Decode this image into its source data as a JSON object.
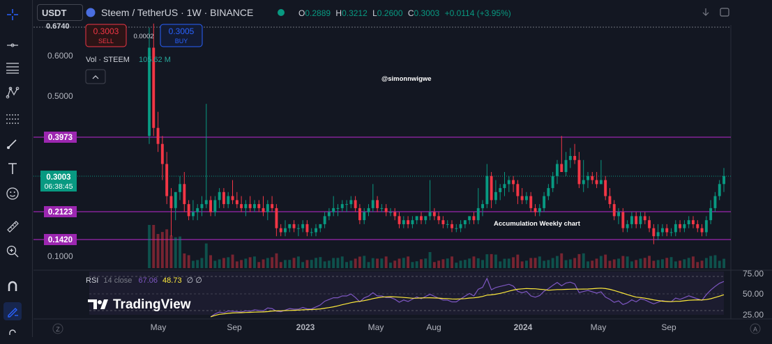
{
  "header": {
    "symbol": "USDT",
    "title": "Steem / TetherUS · 1W · BINANCE",
    "ohlc": {
      "open_label": "O",
      "open": "0.2889",
      "high_label": "H",
      "high": "0.3212",
      "low_label": "L",
      "low": "0.2600",
      "close_label": "C",
      "close": "0.3003",
      "change": "+0.0114 (+3.95%)"
    }
  },
  "trade": {
    "sell_price": "0.3003",
    "sell_label": "SELL",
    "spread": "0.0002",
    "buy_price": "0.3005",
    "buy_label": "BUY"
  },
  "volume_legend": {
    "label": "Vol · STEEM",
    "value": "105.62 M"
  },
  "rsi_legend": {
    "label": "RSI",
    "params": "14 close",
    "value1": "67.06",
    "value2": "48.73",
    "extra": "∅ ∅"
  },
  "annotations": {
    "author": "@simonnwigwe",
    "note": "Accumulation Weekly chart"
  },
  "price_axis": {
    "top_partial": "0.6740",
    "ticks": [
      "0.6000",
      "0.5000",
      "0.1000"
    ],
    "tags": [
      {
        "value": "0.3973",
        "color": "#9c27b0"
      },
      {
        "value": "0.2123",
        "color": "#9c27b0"
      },
      {
        "value": "0.1420",
        "color": "#9c27b0"
      }
    ],
    "current": {
      "value": "0.3003",
      "countdown": "06:38:45",
      "color": "#089981"
    },
    "rsi_ticks": [
      "75.00",
      "50.00",
      "25.00"
    ]
  },
  "time_axis": [
    "May",
    "Sep",
    "2023",
    "May",
    "Aug",
    "2024",
    "May",
    "Sep"
  ],
  "watermark": "TradingView",
  "colors": {
    "up": "#089981",
    "down": "#f23645",
    "level": "#9c27b0",
    "rsi": "#7e57c2",
    "rsi_ma": "#ffeb3b"
  },
  "chart_data": {
    "type": "candlestick",
    "interval": "1W",
    "x_range": [
      "2022-03",
      "2024-11"
    ],
    "y_range": [
      0.075,
      0.674
    ],
    "horizontal_levels": [
      0.3973,
      0.2123,
      0.142
    ],
    "current_price": 0.3003,
    "ohlc_weekly": [
      [
        0.4,
        0.67,
        0.38,
        0.62
      ],
      [
        0.62,
        0.68,
        0.4,
        0.42
      ],
      [
        0.42,
        0.46,
        0.36,
        0.38
      ],
      [
        0.38,
        0.4,
        0.29,
        0.33
      ],
      [
        0.33,
        0.36,
        0.23,
        0.25
      ],
      [
        0.25,
        0.27,
        0.15,
        0.22
      ],
      [
        0.22,
        0.26,
        0.19,
        0.26
      ],
      [
        0.26,
        0.3,
        0.24,
        0.28
      ],
      [
        0.28,
        0.31,
        0.21,
        0.23
      ],
      [
        0.23,
        0.24,
        0.19,
        0.2
      ],
      [
        0.2,
        0.24,
        0.19,
        0.21
      ],
      [
        0.21,
        0.23,
        0.19,
        0.22
      ],
      [
        0.22,
        0.25,
        0.2,
        0.23
      ],
      [
        0.23,
        0.48,
        0.22,
        0.24
      ],
      [
        0.24,
        0.25,
        0.2,
        0.21
      ],
      [
        0.21,
        0.25,
        0.2,
        0.24
      ],
      [
        0.24,
        0.27,
        0.22,
        0.26
      ],
      [
        0.26,
        0.27,
        0.22,
        0.23
      ],
      [
        0.23,
        0.26,
        0.22,
        0.25
      ],
      [
        0.25,
        0.29,
        0.23,
        0.24
      ],
      [
        0.24,
        0.26,
        0.22,
        0.23
      ],
      [
        0.23,
        0.25,
        0.21,
        0.22
      ],
      [
        0.22,
        0.24,
        0.2,
        0.23
      ],
      [
        0.23,
        0.25,
        0.21,
        0.22
      ],
      [
        0.22,
        0.24,
        0.21,
        0.23
      ],
      [
        0.23,
        0.24,
        0.21,
        0.22
      ],
      [
        0.22,
        0.25,
        0.2,
        0.21
      ],
      [
        0.21,
        0.24,
        0.19,
        0.23
      ],
      [
        0.23,
        0.25,
        0.21,
        0.22
      ],
      [
        0.22,
        0.23,
        0.15,
        0.17
      ],
      [
        0.17,
        0.18,
        0.15,
        0.16
      ],
      [
        0.16,
        0.19,
        0.15,
        0.17
      ],
      [
        0.17,
        0.18,
        0.16,
        0.18
      ],
      [
        0.18,
        0.19,
        0.16,
        0.17
      ],
      [
        0.17,
        0.18,
        0.15,
        0.17
      ],
      [
        0.17,
        0.19,
        0.16,
        0.18
      ],
      [
        0.18,
        0.19,
        0.15,
        0.16
      ],
      [
        0.16,
        0.17,
        0.15,
        0.16
      ],
      [
        0.16,
        0.18,
        0.15,
        0.17
      ],
      [
        0.17,
        0.18,
        0.16,
        0.18
      ],
      [
        0.18,
        0.21,
        0.17,
        0.2
      ],
      [
        0.2,
        0.22,
        0.19,
        0.21
      ],
      [
        0.21,
        0.25,
        0.2,
        0.22
      ],
      [
        0.22,
        0.23,
        0.2,
        0.22
      ],
      [
        0.22,
        0.24,
        0.21,
        0.23
      ],
      [
        0.23,
        0.24,
        0.21,
        0.23
      ],
      [
        0.23,
        0.25,
        0.22,
        0.24
      ],
      [
        0.24,
        0.25,
        0.21,
        0.22
      ],
      [
        0.22,
        0.23,
        0.18,
        0.19
      ],
      [
        0.19,
        0.22,
        0.18,
        0.21
      ],
      [
        0.21,
        0.23,
        0.2,
        0.22
      ],
      [
        0.22,
        0.28,
        0.21,
        0.24
      ],
      [
        0.24,
        0.25,
        0.21,
        0.22
      ],
      [
        0.22,
        0.23,
        0.21,
        0.22
      ],
      [
        0.22,
        0.23,
        0.2,
        0.21
      ],
      [
        0.21,
        0.22,
        0.2,
        0.21
      ],
      [
        0.21,
        0.22,
        0.19,
        0.2
      ],
      [
        0.2,
        0.21,
        0.17,
        0.18
      ],
      [
        0.18,
        0.2,
        0.17,
        0.19
      ],
      [
        0.19,
        0.2,
        0.17,
        0.18
      ],
      [
        0.18,
        0.2,
        0.17,
        0.19
      ],
      [
        0.19,
        0.2,
        0.18,
        0.2
      ],
      [
        0.2,
        0.21,
        0.18,
        0.19
      ],
      [
        0.19,
        0.2,
        0.18,
        0.2
      ],
      [
        0.2,
        0.29,
        0.19,
        0.21
      ],
      [
        0.21,
        0.22,
        0.19,
        0.2
      ],
      [
        0.2,
        0.21,
        0.18,
        0.19
      ],
      [
        0.19,
        0.2,
        0.17,
        0.18
      ],
      [
        0.18,
        0.19,
        0.17,
        0.18
      ],
      [
        0.18,
        0.19,
        0.16,
        0.17
      ],
      [
        0.17,
        0.18,
        0.16,
        0.17
      ],
      [
        0.17,
        0.19,
        0.16,
        0.18
      ],
      [
        0.18,
        0.19,
        0.17,
        0.19
      ],
      [
        0.19,
        0.2,
        0.18,
        0.2
      ],
      [
        0.2,
        0.21,
        0.18,
        0.19
      ],
      [
        0.19,
        0.27,
        0.18,
        0.22
      ],
      [
        0.22,
        0.24,
        0.2,
        0.23
      ],
      [
        0.23,
        0.33,
        0.22,
        0.3
      ],
      [
        0.3,
        0.31,
        0.22,
        0.24
      ],
      [
        0.24,
        0.29,
        0.23,
        0.26
      ],
      [
        0.26,
        0.28,
        0.24,
        0.27
      ],
      [
        0.27,
        0.31,
        0.25,
        0.28
      ],
      [
        0.28,
        0.3,
        0.26,
        0.29
      ],
      [
        0.29,
        0.3,
        0.26,
        0.28
      ],
      [
        0.28,
        0.29,
        0.23,
        0.25
      ],
      [
        0.25,
        0.27,
        0.23,
        0.24
      ],
      [
        0.24,
        0.26,
        0.23,
        0.25
      ],
      [
        0.25,
        0.26,
        0.21,
        0.22
      ],
      [
        0.22,
        0.23,
        0.2,
        0.21
      ],
      [
        0.21,
        0.23,
        0.2,
        0.22
      ],
      [
        0.22,
        0.26,
        0.21,
        0.25
      ],
      [
        0.25,
        0.28,
        0.24,
        0.27
      ],
      [
        0.27,
        0.31,
        0.26,
        0.3
      ],
      [
        0.3,
        0.34,
        0.28,
        0.33
      ],
      [
        0.33,
        0.4,
        0.32,
        0.31
      ],
      [
        0.31,
        0.36,
        0.3,
        0.34
      ],
      [
        0.34,
        0.37,
        0.32,
        0.35
      ],
      [
        0.35,
        0.38,
        0.33,
        0.34
      ],
      [
        0.34,
        0.36,
        0.27,
        0.28
      ],
      [
        0.28,
        0.34,
        0.26,
        0.29
      ],
      [
        0.29,
        0.31,
        0.27,
        0.3
      ],
      [
        0.3,
        0.31,
        0.28,
        0.29
      ],
      [
        0.29,
        0.31,
        0.27,
        0.28
      ],
      [
        0.28,
        0.34,
        0.28,
        0.29
      ],
      [
        0.29,
        0.3,
        0.24,
        0.25
      ],
      [
        0.25,
        0.27,
        0.22,
        0.23
      ],
      [
        0.23,
        0.24,
        0.19,
        0.2
      ],
      [
        0.2,
        0.22,
        0.18,
        0.21
      ],
      [
        0.21,
        0.22,
        0.16,
        0.17
      ],
      [
        0.17,
        0.19,
        0.16,
        0.18
      ],
      [
        0.18,
        0.21,
        0.17,
        0.2
      ],
      [
        0.2,
        0.21,
        0.17,
        0.18
      ],
      [
        0.18,
        0.21,
        0.17,
        0.2
      ],
      [
        0.2,
        0.21,
        0.18,
        0.19
      ],
      [
        0.19,
        0.2,
        0.16,
        0.17
      ],
      [
        0.17,
        0.18,
        0.13,
        0.15
      ],
      [
        0.15,
        0.18,
        0.14,
        0.16
      ],
      [
        0.16,
        0.18,
        0.15,
        0.17
      ],
      [
        0.17,
        0.18,
        0.15,
        0.16
      ],
      [
        0.16,
        0.17,
        0.15,
        0.16
      ],
      [
        0.16,
        0.19,
        0.15,
        0.18
      ],
      [
        0.18,
        0.19,
        0.16,
        0.17
      ],
      [
        0.17,
        0.19,
        0.16,
        0.18
      ],
      [
        0.18,
        0.2,
        0.17,
        0.19
      ],
      [
        0.19,
        0.2,
        0.17,
        0.18
      ],
      [
        0.18,
        0.19,
        0.16,
        0.17
      ],
      [
        0.17,
        0.18,
        0.15,
        0.16
      ],
      [
        0.16,
        0.2,
        0.15,
        0.19
      ],
      [
        0.19,
        0.24,
        0.18,
        0.22
      ],
      [
        0.22,
        0.26,
        0.21,
        0.25
      ],
      [
        0.25,
        0.29,
        0.24,
        0.28
      ],
      [
        0.28,
        0.32,
        0.26,
        0.3
      ]
    ],
    "rsi": {
      "period": 14,
      "y_range": [
        25,
        75
      ],
      "bands": [
        30,
        70
      ],
      "last": 67.06,
      "ma_last": 48.73
    }
  }
}
